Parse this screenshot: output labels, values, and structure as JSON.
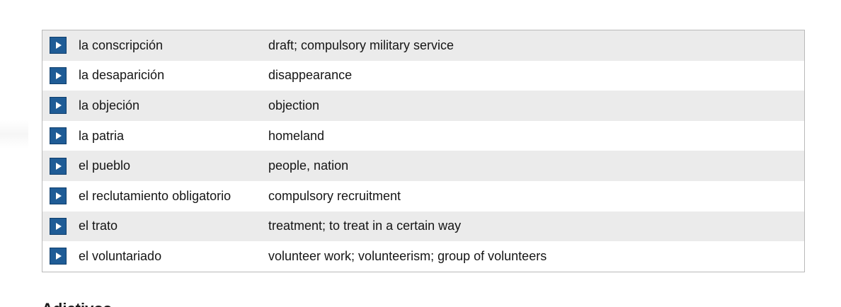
{
  "vocabulary": [
    {
      "term": "la conscripción",
      "definition": "draft; compulsory military service"
    },
    {
      "term": "la desaparición",
      "definition": "disappearance"
    },
    {
      "term": "la objeción",
      "definition": "objection"
    },
    {
      "term": "la patria",
      "definition": "homeland"
    },
    {
      "term": "el pueblo",
      "definition": "people, nation"
    },
    {
      "term": "el reclutamiento obligatorio",
      "definition": "compulsory recruitment"
    },
    {
      "term": "el trato",
      "definition": "treatment; to treat in a certain way"
    },
    {
      "term": "el voluntariado",
      "definition": "volunteer work; volunteerism; group of volunteers"
    }
  ],
  "next_section": {
    "heading": "Adjetivos"
  },
  "icons": {
    "audio": "play-icon"
  },
  "colors": {
    "row_shade": "#ebebeb",
    "audio_button": "#1f5c96",
    "table_border": "#b9b9b9"
  }
}
